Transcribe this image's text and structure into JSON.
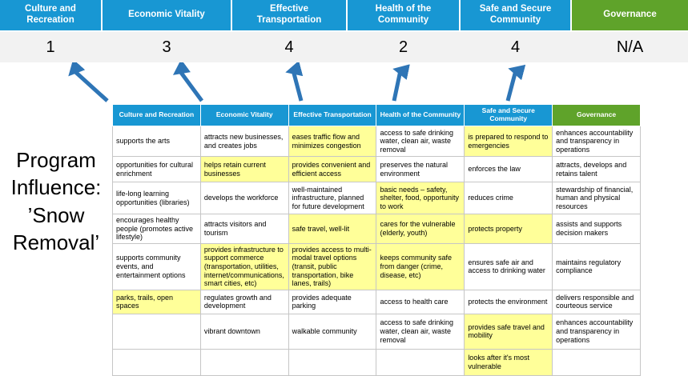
{
  "title": "Program Influence: ’Snow Removal’",
  "colors": {
    "header_blue": "#1897D3",
    "header_green": "#5FA32A",
    "highlight_yellow": "#FFFF99",
    "arrow_blue": "#2E75B6",
    "score_band_bg": "#F2F2F2",
    "cell_border": "#C6C6C6"
  },
  "scoreboard": {
    "columns": [
      {
        "label": "Culture and Recreation",
        "score": "1"
      },
      {
        "label": "Economic Vitality",
        "score": "3"
      },
      {
        "label": "Effective Transportation",
        "score": "4"
      },
      {
        "label": "Health of the Community",
        "score": "2"
      },
      {
        "label": "Safe and Secure Community",
        "score": "4"
      },
      {
        "label": "Governance",
        "score": "N/A"
      }
    ]
  },
  "matrix": {
    "headers": [
      "Culture and Recreation",
      "Economic Vitality",
      "Effective Transportation",
      "Health of the Community",
      "Safe and Secure Community",
      "Governance"
    ],
    "rows": [
      [
        {
          "t": "supports the arts",
          "hl": false
        },
        {
          "t": "attracts new businesses, and creates jobs",
          "hl": false
        },
        {
          "t": "eases traffic flow and minimizes congestion",
          "hl": true
        },
        {
          "t": "access to safe drinking water, clean air, waste removal",
          "hl": false
        },
        {
          "t": "is prepared to respond to emergencies",
          "hl": true
        },
        {
          "t": "enhances accountability and transparency in operations",
          "hl": false
        }
      ],
      [
        {
          "t": "opportunities for cultural enrichment",
          "hl": false
        },
        {
          "t": "helps retain current businesses",
          "hl": true
        },
        {
          "t": "provides convenient and efficient access",
          "hl": true
        },
        {
          "t": "preserves the natural environment",
          "hl": false
        },
        {
          "t": "enforces the law",
          "hl": false
        },
        {
          "t": "attracts, develops and retains talent",
          "hl": false
        }
      ],
      [
        {
          "t": "life-long learning opportunities (libraries)",
          "hl": false
        },
        {
          "t": "develops the workforce",
          "hl": false
        },
        {
          "t": "well-maintained infrastructure, planned for future development",
          "hl": false
        },
        {
          "t": "basic needs – safety, shelter, food, opportunity to work",
          "hl": true
        },
        {
          "t": "reduces crime",
          "hl": false
        },
        {
          "t": "stewardship of financial, human and physical resources",
          "hl": false
        }
      ],
      [
        {
          "t": "encourages healthy people (promotes active lifestyle)",
          "hl": false
        },
        {
          "t": "attracts visitors and tourism",
          "hl": false
        },
        {
          "t": "safe travel, well-lit",
          "hl": true
        },
        {
          "t": "cares for the vulnerable (elderly, youth)",
          "hl": true
        },
        {
          "t": "protects property",
          "hl": true
        },
        {
          "t": "assists and supports decision makers",
          "hl": false
        }
      ],
      [
        {
          "t": "supports community events, and entertainment options",
          "hl": false
        },
        {
          "t": "provides infrastructure to support commerce (transportation, utilities, internet/communications, smart cities, etc)",
          "hl": true
        },
        {
          "t": "provides access to multi-modal travel options (transit, public transportation, bike lanes, trails)",
          "hl": true
        },
        {
          "t": "keeps community safe from danger (crime, disease, etc)",
          "hl": true
        },
        {
          "t": "ensures safe air and access to drinking water",
          "hl": false
        },
        {
          "t": "maintains regulatory compliance",
          "hl": false
        }
      ],
      [
        {
          "t": "parks, trails, open spaces",
          "hl": true
        },
        {
          "t": "regulates growth and development",
          "hl": false
        },
        {
          "t": "provides adequate parking",
          "hl": false
        },
        {
          "t": "access to health care",
          "hl": false
        },
        {
          "t": "protects the environment",
          "hl": false
        },
        {
          "t": "delivers responsible and courteous service",
          "hl": false
        }
      ],
      [
        {
          "t": "",
          "hl": false
        },
        {
          "t": "vibrant downtown",
          "hl": false
        },
        {
          "t": "walkable community",
          "hl": false
        },
        {
          "t": "access to safe drinking water, clean air, waste removal",
          "hl": false
        },
        {
          "t": "provides safe travel and mobility",
          "hl": true
        },
        {
          "t": "enhances accountability and transparency in operations",
          "hl": false
        }
      ],
      [
        {
          "t": "",
          "hl": false
        },
        {
          "t": "",
          "hl": false
        },
        {
          "t": "",
          "hl": false
        },
        {
          "t": "",
          "hl": false
        },
        {
          "t": "looks after it's most vulnerable",
          "hl": true
        },
        {
          "t": "",
          "hl": false
        }
      ]
    ]
  }
}
